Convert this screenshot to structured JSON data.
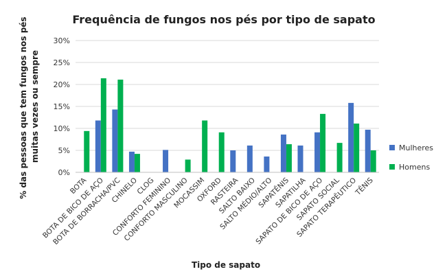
{
  "chart_data": {
    "type": "bar",
    "title": "Frequência de fungos nos pés por tipo de sapato",
    "xlabel": "Tipo de sapato",
    "ylabel_lines": [
      "% das pessoas que tem fungos nos pés",
      "muitas vezes ou sempre"
    ],
    "ylim": [
      0,
      30
    ],
    "yticks": [
      0,
      5,
      10,
      15,
      20,
      25,
      30
    ],
    "ytick_labels": [
      "0%",
      "5%",
      "10%",
      "15%",
      "20%",
      "25%",
      "30%"
    ],
    "grid": true,
    "legend_position": "right",
    "categories": [
      "BOTA",
      "BOTA DE BICO DE AÇO",
      "BOTA DE BORRACHA/PVC",
      "CHINELO",
      "CLOG",
      "CONFORTO FEMININO",
      "CONFORTO MASCULINO",
      "MOCASSIM",
      "OXFORD",
      "RASTEIRA",
      "SALTO BAIXO",
      "SALTO MÉDIO/ALTO",
      "SAPATÊNIS",
      "SAPATILHA",
      "SAPATO DE BICO DE AÇO",
      "SAPATO SOCIAL",
      "SAPATO TERAPÊUTICO",
      "TÊNIS"
    ],
    "series": [
      {
        "name": "Mulheres",
        "color": "#4472C4",
        "values": [
          null,
          11.8,
          14.3,
          4.7,
          null,
          5.1,
          null,
          null,
          null,
          5.0,
          6.1,
          3.6,
          8.6,
          6.1,
          9.1,
          null,
          15.8,
          9.7
        ]
      },
      {
        "name": "Homens",
        "color": "#00B050",
        "values": [
          9.4,
          21.4,
          21.1,
          4.2,
          null,
          null,
          2.9,
          11.8,
          9.1,
          null,
          null,
          null,
          6.4,
          null,
          13.3,
          6.7,
          11.1,
          5.0
        ]
      }
    ]
  }
}
